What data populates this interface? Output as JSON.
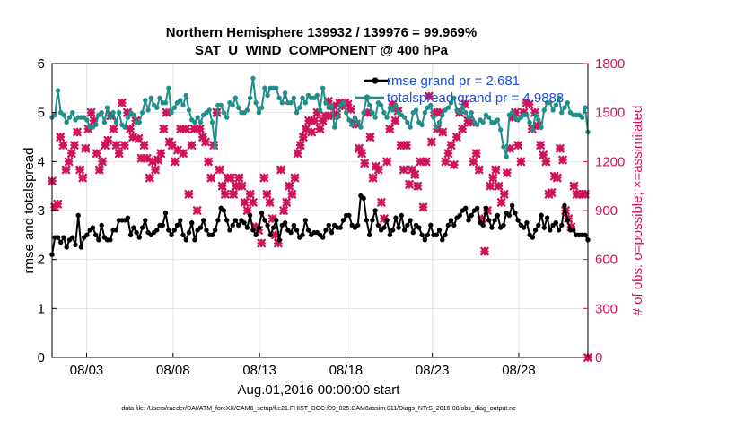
{
  "chart_data": {
    "type": "line",
    "title": "Northern Hemisphere 139932 / 139976 = 99.969%",
    "subtitle": "SAT_U_WIND_COMPONENT @ 400 hPa",
    "xlabel": "Aug.01,2016 00:00:00 start",
    "ylabel_left": "rmse and totalspread",
    "ylabel_right": "# of obs: o=possible; ×=assimilated",
    "footer": "data file: /Users/raeder/DAI/ATM_forcXX/CAM6_setup/f.e21.FHIST_BGC.f09_025.CAM6assim.011/Diags_NTrS_2016-08/obs_diag_output.nc",
    "x_tick_labels": [
      "08/03",
      "08/08",
      "08/13",
      "08/18",
      "08/23",
      "08/28"
    ],
    "x_tick_days": [
      3,
      8,
      13,
      18,
      23,
      28
    ],
    "xlim_days": [
      1.0,
      32.0
    ],
    "ylim_left": [
      0,
      6
    ],
    "y_ticks_left": [
      "0",
      "1",
      "2",
      "3",
      "4",
      "5",
      "6"
    ],
    "ylim_right": [
      0,
      1800
    ],
    "y_ticks_right": [
      "0",
      "300",
      "600",
      "900",
      "1200",
      "1500",
      "1800"
    ],
    "grid": true,
    "legend_position": "top-right",
    "colors": {
      "rmse": "#000000",
      "spread": "#1f8f8a",
      "obs": "#d0135b",
      "legend_text": "#1a4fe0",
      "right_axis": "#d0135b"
    },
    "series": [
      {
        "name": "rmse grand pr = 2.681",
        "axis": "left",
        "values": [
          2.1,
          2.45,
          2.45,
          2.35,
          2.45,
          2.25,
          2.4,
          2.45,
          2.3,
          2.9,
          2.25,
          2.45,
          2.5,
          2.6,
          2.65,
          2.5,
          2.4,
          2.7,
          2.45,
          2.4,
          2.4,
          2.6,
          2.6,
          2.8,
          2.8,
          2.8,
          2.85,
          2.5,
          2.65,
          2.55,
          2.45,
          2.65,
          2.8,
          2.55,
          2.5,
          2.55,
          2.6,
          2.7,
          2.7,
          2.95,
          2.6,
          2.5,
          2.6,
          2.7,
          2.8,
          2.5,
          2.4,
          2.55,
          2.75,
          2.4,
          2.6,
          2.65,
          2.8,
          2.6,
          2.5,
          2.5,
          2.6,
          2.8,
          3.05,
          3.0,
          2.8,
          2.6,
          2.7,
          2.8,
          2.7,
          2.8,
          2.75,
          2.65,
          2.9,
          2.6,
          2.5,
          2.65,
          2.95,
          2.8,
          2.7,
          2.5,
          2.65,
          2.8,
          2.4,
          2.7,
          2.75,
          2.6,
          2.55,
          2.7,
          2.6,
          2.45,
          2.5,
          2.8,
          2.6,
          2.5,
          2.55,
          2.55,
          2.5,
          2.45,
          2.6,
          2.7,
          2.55,
          2.7,
          2.65,
          2.65,
          2.8,
          2.9,
          2.9,
          2.7,
          2.65,
          2.7,
          3.3,
          3.25,
          2.8,
          2.5,
          2.8,
          3.0,
          2.7,
          2.6,
          2.65,
          2.8,
          2.5,
          2.6,
          2.85,
          2.65,
          2.9,
          2.6,
          2.7,
          2.8,
          2.55,
          2.7,
          2.65,
          2.5,
          2.4,
          2.5,
          2.7,
          2.5,
          2.5,
          2.6,
          2.4,
          2.5,
          2.7,
          2.8,
          2.7,
          2.85,
          2.9,
          3.0,
          3.05,
          2.8,
          2.9,
          3.0,
          3.05,
          2.75,
          2.7,
          3.05,
          2.8,
          2.65,
          2.8,
          2.9,
          2.65,
          2.7,
          2.95,
          2.9,
          3.1,
          2.95,
          2.8,
          2.7,
          2.65,
          2.75,
          2.5,
          2.45,
          2.6,
          2.7,
          2.9,
          2.65,
          2.85,
          2.6,
          2.7,
          2.75,
          2.6,
          2.7,
          3.1,
          2.8,
          2.6,
          2.6,
          2.5,
          2.5,
          2.5,
          2.5,
          2.4
        ]
      },
      {
        "name": "totalspread grand pr = 4.9883",
        "axis": "left",
        "values": [
          4.9,
          4.95,
          5.45,
          5.0,
          4.95,
          4.8,
          4.9,
          5.0,
          4.85,
          4.9,
          4.9,
          4.9,
          4.85,
          4.7,
          4.7,
          4.75,
          4.95,
          5.0,
          4.8,
          5.1,
          4.9,
          5.0,
          4.8,
          5.0,
          4.75,
          4.7,
          4.9,
          5.0,
          4.95,
          4.8,
          4.8,
          5.0,
          5.25,
          5.05,
          5.3,
          5.15,
          5.1,
          5.3,
          5.2,
          5.2,
          5.5,
          5.0,
          5.1,
          5.2,
          5.25,
          5.15,
          5.35,
          5.05,
          4.85,
          4.8,
          4.9,
          4.8,
          4.95,
          5.0,
          5.05,
          4.8,
          4.3,
          5.15,
          5.15,
          5.0,
          4.9,
          5.2,
          5.15,
          5.3,
          5.1,
          5.0,
          5.0,
          5.05,
          5.3,
          5.7,
          5.2,
          5.0,
          5.1,
          5.5,
          5.35,
          5.5,
          5.5,
          5.5,
          5.3,
          5.2,
          5.4,
          5.2,
          5.2,
          5.3,
          5.0,
          5.1,
          5.3,
          5.2,
          5.35,
          5.3,
          5.3,
          5.35,
          5.05,
          5.5,
          5.2,
          5.1,
          5.15,
          4.7,
          4.9,
          5.15,
          5.2,
          5.0,
          4.85,
          4.75,
          4.9,
          4.8,
          4.7,
          5.0,
          5.3,
          5.15,
          5.0,
          4.9,
          5.2,
          5.15,
          5.0,
          4.9,
          5.1,
          5.05,
          5.15,
          5.0,
          4.95,
          4.9,
          4.8,
          4.7,
          5.0,
          5.05,
          4.8,
          4.75,
          5.0,
          5.1,
          5.15,
          4.9,
          4.7,
          4.8,
          4.95,
          5.05,
          5.1,
          5.2,
          5.3,
          5.05,
          5.0,
          5.1,
          5.0,
          4.9,
          5.0,
          4.8,
          4.75,
          4.85,
          4.8,
          4.95,
          4.9,
          4.8,
          4.8,
          4.85,
          4.65,
          4.3,
          4.1,
          4.95,
          5.0,
          4.9,
          4.85,
          4.9,
          4.95,
          4.95,
          4.8,
          4.65,
          4.95,
          4.85,
          4.7,
          5.05,
          5.2,
          5.2,
          5.05,
          5.15,
          5.3,
          5.0,
          5.1,
          5.2,
          5.0,
          4.95,
          4.95,
          4.95,
          4.9,
          5.1,
          4.6
        ]
      },
      {
        "name": "assimilated obs",
        "axis": "right",
        "marker": "x",
        "values": [
          1080,
          920,
          940,
          1350,
          1300,
          1150,
          1200,
          1250,
          1300,
          1380,
          1150,
          1100,
          1280,
          1400,
          1500,
          1450,
          1250,
          1150,
          1200,
          1300,
          1330,
          1480,
          1400,
          1300,
          1250,
          1560,
          1300,
          1500,
          1400,
          1350,
          1450,
          1340,
          1220,
          1300,
          1220,
          1100,
          1200,
          1150,
          1210,
          1250,
          1400,
          1500,
          1320,
          1300,
          1200,
          1270,
          1400,
          1250,
          1400,
          1000,
          1300,
          1400,
          900,
          1400,
          1350,
          1320,
          1200,
          1100,
          1300,
          1500,
          1150,
          1050,
          1000,
          1100,
          1100,
          1000,
          1050,
          1100,
          1050,
          950,
          900,
          1000,
          950,
          800,
          780,
          700,
          1100,
          1000,
          950,
          850,
          750,
          700,
          1150,
          900,
          950,
          1050,
          1000,
          1100,
          1250,
          1300,
          1350,
          1400,
          1450,
          1380,
          1450,
          1500,
          1400,
          1450,
          1480,
          1570,
          1480,
          1540,
          1490,
          1560,
          1540,
          1560,
          1550,
          1520,
          1440,
          1430,
          1280,
          1250,
          1190,
          1500,
          1350,
          1100,
          1170,
          1150,
          950,
          850,
          1200,
          1400,
          1550,
          1450,
          1510,
          1300,
          1150,
          1300,
          1060,
          1150,
          1120,
          1050,
          1200,
          920,
          1200,
          1600,
          1320,
          1500,
          1400,
          1500,
          1380,
          1200,
          1250,
          1300,
          1180,
          1350,
          1500,
          1400,
          1550,
          1450,
          1440,
          1200,
          1250,
          1150,
          850,
          650,
          900,
          1050,
          1100,
          1150,
          1050,
          950,
          1000,
          1130,
          1280,
          1470,
          1500,
          1300,
          1200,
          1500,
          1560,
          1550,
          1400,
          1500,
          1420,
          1300,
          1240,
          1200,
          1000,
          1010,
          1110,
          1100,
          1280,
          1210,
          900,
          850,
          800,
          1050,
          1000,
          1000,
          1000,
          1000,
          0
        ]
      }
    ]
  }
}
